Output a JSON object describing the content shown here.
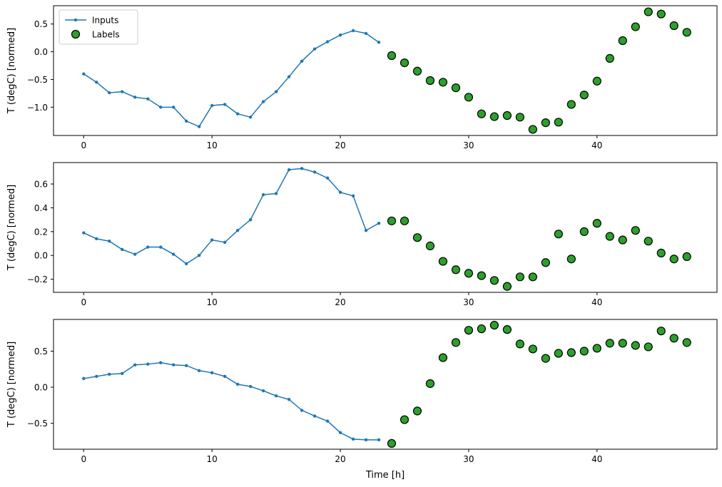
{
  "figure": {
    "background": "#ffffff",
    "line_color": "#1f77b4",
    "marker_color": "#2ca02c",
    "marker_edge_color": "#000000"
  },
  "chart_data": [
    {
      "type": "line+scatter",
      "title": "",
      "ylabel": "T (degC) [normed]",
      "xlabel": "",
      "xlim": [
        -2.35,
        49.35
      ],
      "ylim": [
        -1.51,
        0.83
      ],
      "xticks": [
        0,
        10,
        20,
        30,
        40
      ],
      "yticks": [
        -1.0,
        -0.5,
        0.0,
        0.5
      ],
      "grid": false,
      "legend": true,
      "legend_position": "upper left",
      "series": [
        {
          "name": "Inputs",
          "type": "line",
          "color": "#1f77b4",
          "marker": "dot",
          "x": [
            0,
            1,
            2,
            3,
            4,
            5,
            6,
            7,
            8,
            9,
            10,
            11,
            12,
            13,
            14,
            15,
            16,
            17,
            18,
            19,
            20,
            21,
            22,
            23
          ],
          "values": [
            -0.4,
            -0.55,
            -0.74,
            -0.72,
            -0.82,
            -0.85,
            -1.0,
            -1.0,
            -1.25,
            -1.35,
            -0.97,
            -0.95,
            -1.12,
            -1.18,
            -0.9,
            -0.72,
            -0.45,
            -0.17,
            0.05,
            0.18,
            0.3,
            0.38,
            0.33,
            0.17
          ]
        },
        {
          "name": "Labels",
          "type": "scatter",
          "color": "#2ca02c",
          "edge_color": "#000000",
          "x": [
            24,
            25,
            26,
            27,
            28,
            29,
            30,
            31,
            32,
            33,
            34,
            35,
            36,
            37,
            38,
            39,
            40,
            41,
            42,
            43,
            44,
            45,
            46,
            47
          ],
          "values": [
            -0.07,
            -0.2,
            -0.35,
            -0.52,
            -0.55,
            -0.65,
            -0.82,
            -1.12,
            -1.17,
            -1.15,
            -1.18,
            -1.4,
            -1.28,
            -1.27,
            -0.95,
            -0.78,
            -0.53,
            -0.12,
            0.2,
            0.45,
            0.72,
            0.68,
            0.47,
            0.35
          ]
        }
      ]
    },
    {
      "type": "line+scatter",
      "title": "",
      "ylabel": "T (degC) [normed]",
      "xlabel": "",
      "xlim": [
        -2.35,
        49.35
      ],
      "ylim": [
        -0.31,
        0.78
      ],
      "xticks": [
        0,
        10,
        20,
        30,
        40
      ],
      "yticks": [
        -0.2,
        0.0,
        0.2,
        0.4,
        0.6
      ],
      "grid": false,
      "legend": false,
      "series": [
        {
          "name": "Inputs",
          "type": "line",
          "color": "#1f77b4",
          "marker": "dot",
          "x": [
            0,
            1,
            2,
            3,
            4,
            5,
            6,
            7,
            8,
            9,
            10,
            11,
            12,
            13,
            14,
            15,
            16,
            17,
            18,
            19,
            20,
            21,
            22,
            23
          ],
          "values": [
            0.19,
            0.14,
            0.12,
            0.05,
            0.01,
            0.07,
            0.07,
            0.01,
            -0.07,
            0.0,
            0.13,
            0.11,
            0.21,
            0.3,
            0.51,
            0.52,
            0.72,
            0.73,
            0.7,
            0.65,
            0.53,
            0.5,
            0.21,
            0.27
          ]
        },
        {
          "name": "Labels",
          "type": "scatter",
          "color": "#2ca02c",
          "edge_color": "#000000",
          "x": [
            24,
            25,
            26,
            27,
            28,
            29,
            30,
            31,
            32,
            33,
            34,
            35,
            36,
            37,
            38,
            39,
            40,
            41,
            42,
            43,
            44,
            45,
            46,
            47
          ],
          "values": [
            0.29,
            0.29,
            0.15,
            0.08,
            -0.05,
            -0.12,
            -0.15,
            -0.17,
            -0.21,
            -0.26,
            -0.18,
            -0.18,
            -0.06,
            0.18,
            -0.03,
            0.2,
            0.27,
            0.16,
            0.13,
            0.21,
            0.12,
            0.02,
            -0.03,
            -0.01
          ]
        }
      ]
    },
    {
      "type": "line+scatter",
      "title": "",
      "ylabel": "T (degC) [normed]",
      "xlabel": "Time [h]",
      "xlim": [
        -2.35,
        49.35
      ],
      "ylim": [
        -0.86,
        0.94
      ],
      "xticks": [
        0,
        10,
        20,
        30,
        40
      ],
      "yticks": [
        -0.5,
        0.0,
        0.5
      ],
      "grid": false,
      "legend": false,
      "series": [
        {
          "name": "Inputs",
          "type": "line",
          "color": "#1f77b4",
          "marker": "dot",
          "x": [
            0,
            1,
            2,
            3,
            4,
            5,
            6,
            7,
            8,
            9,
            10,
            11,
            12,
            13,
            14,
            15,
            16,
            17,
            18,
            19,
            20,
            21,
            22,
            23
          ],
          "values": [
            0.12,
            0.15,
            0.18,
            0.19,
            0.31,
            0.32,
            0.34,
            0.31,
            0.3,
            0.23,
            0.2,
            0.15,
            0.04,
            0.01,
            -0.05,
            -0.12,
            -0.17,
            -0.32,
            -0.4,
            -0.47,
            -0.63,
            -0.72,
            -0.73,
            -0.73
          ]
        },
        {
          "name": "Labels",
          "type": "scatter",
          "color": "#2ca02c",
          "edge_color": "#000000",
          "x": [
            24,
            25,
            26,
            27,
            28,
            29,
            30,
            31,
            32,
            33,
            34,
            35,
            36,
            37,
            38,
            39,
            40,
            41,
            42,
            43,
            44,
            45,
            46,
            47
          ],
          "values": [
            -0.78,
            -0.45,
            -0.33,
            0.05,
            0.41,
            0.62,
            0.79,
            0.81,
            0.86,
            0.8,
            0.6,
            0.53,
            0.4,
            0.47,
            0.48,
            0.5,
            0.54,
            0.61,
            0.61,
            0.58,
            0.56,
            0.78,
            0.68,
            0.62
          ]
        }
      ]
    }
  ]
}
